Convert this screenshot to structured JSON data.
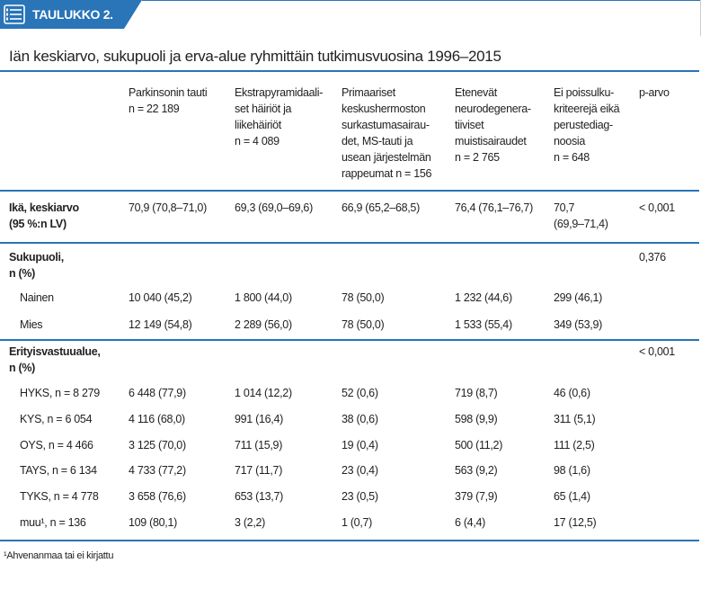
{
  "header": {
    "label": "TAULUKKO 2.",
    "title": "Iän keskiarvo, sukupuoli ja erva-alue ryhmittäin tutkimusvuosina 1996–2015"
  },
  "table": {
    "columns": [
      [
        "Parkinsonin tauti",
        "n = 22 189"
      ],
      [
        "Ekstrapyramidaali-",
        "set häiriöt ja",
        "liikehäiriöt",
        "n = 4 089"
      ],
      [
        "Primaariset",
        "keskushermoston",
        "surkastumasairau-",
        "det, MS-tauti ja",
        "usean järjestelmän",
        "rappeumat n = 156"
      ],
      [
        "Etenevät",
        "neurodegenera-",
        "tiiviset",
        "muistisairaudet",
        "n = 2 765"
      ],
      [
        "Ei poissulku-",
        "kriteerejä eikä",
        "perustediag-",
        "noosia",
        "n = 648"
      ],
      [
        "p-arvo"
      ]
    ],
    "rows": [
      {
        "label": [
          "Ikä, keskiarvo",
          "(95 %:n LV)"
        ],
        "cells": [
          "70,9 (70,8–71,0)",
          "69,3 (69,0–69,6)",
          "66,9 (65,2–68,5)",
          "76,4 (76,1–76,7)",
          [
            "70,7",
            "(69,9–71,4)"
          ],
          "< 0,001"
        ]
      },
      {
        "label": [
          "Sukupuoli,",
          "n (%)"
        ],
        "cells": [
          null,
          null,
          null,
          null,
          null,
          "0,376"
        ]
      },
      {
        "label": [
          "Nainen"
        ],
        "cells": [
          "10 040 (45,2)",
          "1 800 (44,0)",
          "78 (50,0)",
          "1 232 (44,6)",
          "299 (46,1)",
          null
        ]
      },
      {
        "label": [
          "Mies"
        ],
        "cells": [
          "12 149 (54,8)",
          "2 289 (56,0)",
          "78 (50,0)",
          "1 533 (55,4)",
          "349 (53,9)",
          null
        ]
      },
      {
        "label": [
          "Erityisvastuualue,",
          "n (%)"
        ],
        "cells": [
          null,
          null,
          null,
          null,
          null,
          "< 0,001"
        ]
      },
      {
        "label": [
          "HYKS, n = 8 279"
        ],
        "cells": [
          "6 448 (77,9)",
          "1 014 (12,2)",
          "52 (0,6)",
          "719 (8,7)",
          "46 (0,6)",
          null
        ]
      },
      {
        "label": [
          "KYS, n = 6 054"
        ],
        "cells": [
          "4 116 (68,0)",
          "991 (16,4)",
          "38 (0,6)",
          "598 (9,9)",
          "311 (5,1)",
          null
        ]
      },
      {
        "label": [
          "OYS, n = 4 466"
        ],
        "cells": [
          "3 125 (70,0)",
          "711 (15,9)",
          "19 (0,4)",
          "500 (11,2)",
          "111 (2,5)",
          null
        ]
      },
      {
        "label": [
          "TAYS, n = 6 134"
        ],
        "cells": [
          "4 733 (77,2)",
          "717 (11,7)",
          "23 (0,4)",
          "563 (9,2)",
          "98 (1,6)",
          null
        ]
      },
      {
        "label": [
          "TYKS, n = 4 778"
        ],
        "cells": [
          "3 658 (76,6)",
          "653 (13,7)",
          "23 (0,5)",
          "379 (7,9)",
          "65 (1,4)",
          null
        ]
      },
      {
        "label": [
          "muu¹, n = 136"
        ],
        "cells": [
          "109 (80,1)",
          "3 (2,2)",
          "1 (0,7)",
          "6 (4,4)",
          "17 (12,5)",
          null
        ]
      }
    ]
  },
  "footnote": "¹Ahvenanmaa tai ei kirjattu"
}
